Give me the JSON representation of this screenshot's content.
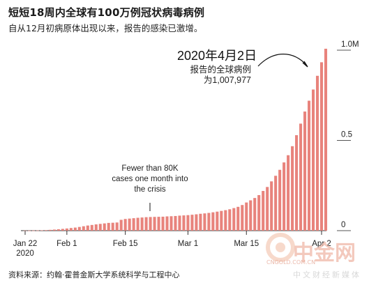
{
  "title": "短短18周内全球有100万例冠状病毒病例",
  "subtitle": "自从12月初病原体出现以来，报告的感染已激增。",
  "source": "资料来源：约翰·霍普金斯大学系统科学与工程中心",
  "watermark": {
    "main": "中金网",
    "domain": "CNGOLD.COM.CN",
    "sub": "中文财经新媒体",
    "color": "#efb8a8"
  },
  "colors": {
    "bar": "#e8837c",
    "axis": "#333333"
  },
  "chart_data": {
    "type": "bar",
    "x_start": "2020-01-22",
    "x_end": "2020-04-02",
    "ylim": [
      0,
      1.0
    ],
    "y_unit": "million",
    "x_ticks": [
      {
        "label": "Jan 22",
        "label2": "2020",
        "date": "2020-01-22"
      },
      {
        "label": "Feb 1",
        "label2": "",
        "date": "2020-02-01"
      },
      {
        "label": "Feb 15",
        "label2": "",
        "date": "2020-02-15"
      },
      {
        "label": "Mar 1",
        "label2": "",
        "date": "2020-03-01"
      },
      {
        "label": "Mar 15",
        "label2": "",
        "date": "2020-03-15"
      },
      {
        "label": "Apr 2",
        "label2": "",
        "date": "2020-04-02"
      }
    ],
    "y_ticks": [
      {
        "label": "0",
        "value": 0
      },
      {
        "label": "0.5",
        "value": 0.5
      },
      {
        "label": "1.0M",
        "value": 1.0
      }
    ],
    "values": [
      0.0006,
      0.0007,
      0.0009,
      0.0014,
      0.0021,
      0.0029,
      0.0045,
      0.006,
      0.0078,
      0.0098,
      0.012,
      0.0146,
      0.0171,
      0.0205,
      0.0244,
      0.0284,
      0.0315,
      0.0348,
      0.0375,
      0.0401,
      0.0429,
      0.0438,
      0.0452,
      0.06,
      0.0647,
      0.0669,
      0.069,
      0.0713,
      0.0729,
      0.0747,
      0.0756,
      0.0763,
      0.0768,
      0.0774,
      0.079,
      0.08,
      0.0812,
      0.0833,
      0.0845,
      0.086,
      0.0882,
      0.0906,
      0.0935,
      0.0956,
      0.0983,
      0.1017,
      0.1054,
      0.1094,
      0.1135,
      0.1185,
      0.125,
      0.132,
      0.142,
      0.156,
      0.168,
      0.181,
      0.197,
      0.22,
      0.242,
      0.273,
      0.304,
      0.337,
      0.378,
      0.418,
      0.468,
      0.529,
      0.593,
      0.66,
      0.72,
      0.782,
      0.858,
      0.933,
      1.007977
    ],
    "annotations": [
      {
        "text": "2020年4月2日",
        "kind": "date"
      },
      {
        "text": "报告的全球病例",
        "kind": "label"
      },
      {
        "text": "为1,007,977",
        "kind": "value"
      },
      {
        "lines": [
          "Fewer than 80K",
          "cases one month into",
          "the crisis"
        ],
        "kind": "note"
      }
    ]
  }
}
